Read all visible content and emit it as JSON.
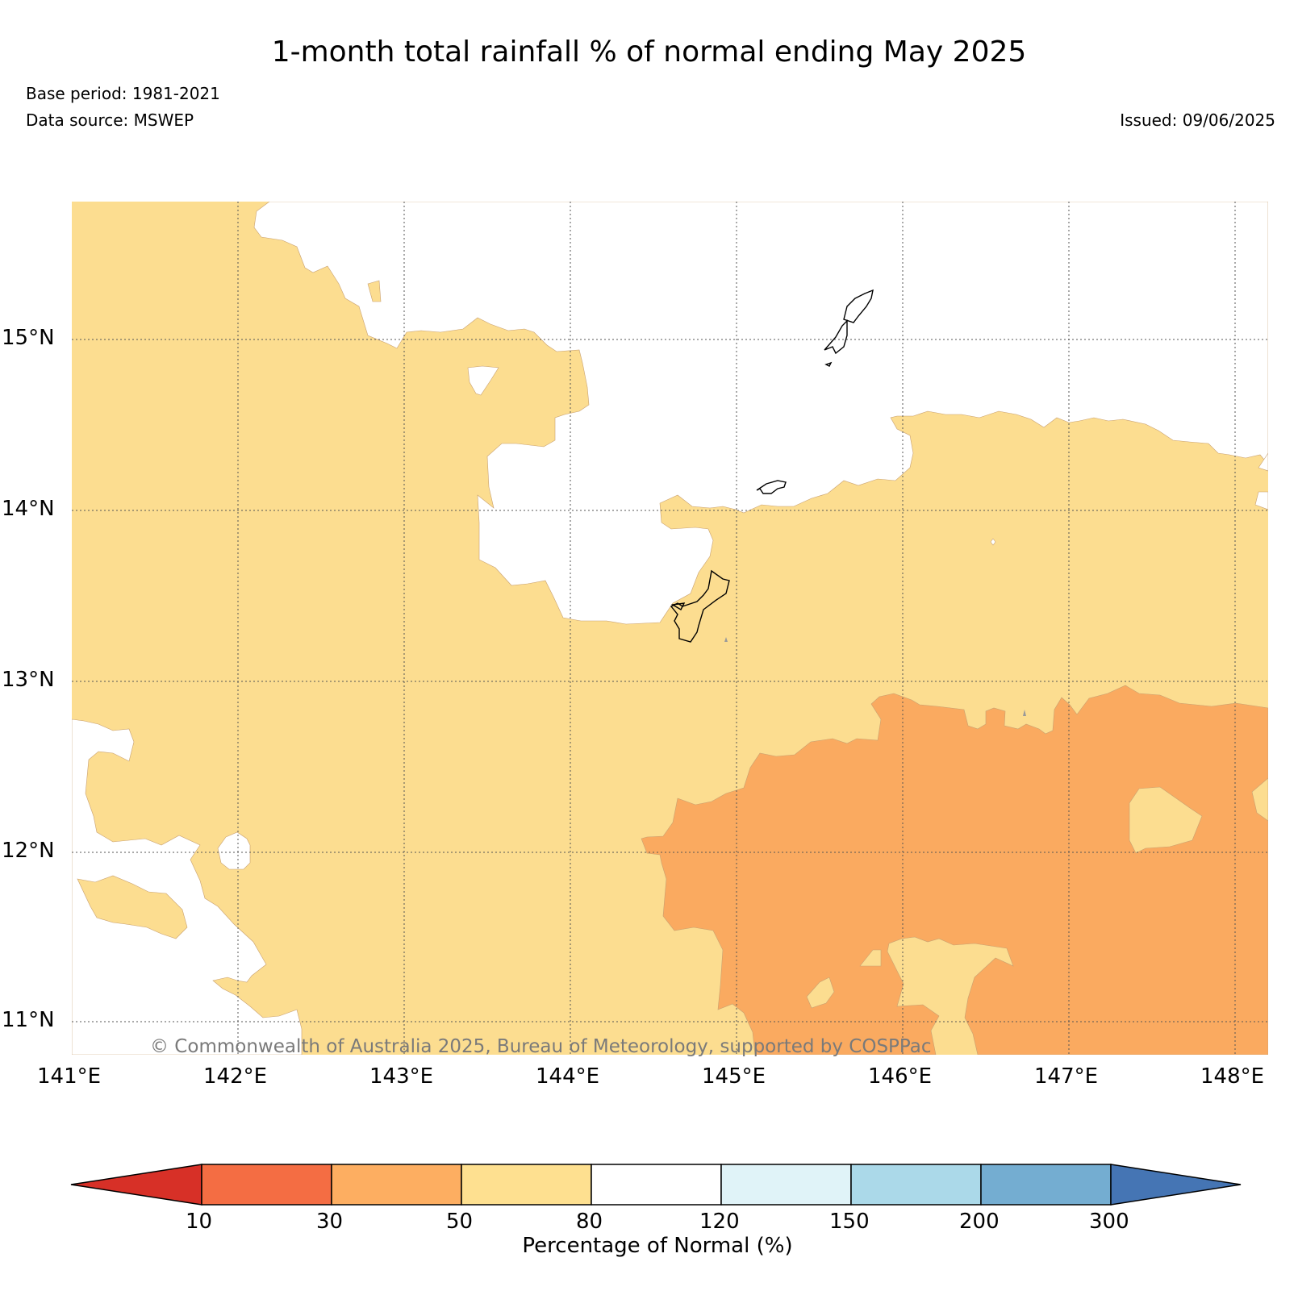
{
  "header": {
    "title": "1-month total rainfall % of normal ending May 2025",
    "base_period": "Base period: 1981-2021",
    "data_source": "Data source: MSWEP",
    "issued": "Issued: 09/06/2025"
  },
  "map": {
    "latitude_labels": [
      "15°N",
      "14°N",
      "13°N",
      "12°N",
      "11°N"
    ],
    "longitude_labels": [
      "141°E",
      "142°E",
      "143°E",
      "144°E",
      "145°E",
      "146°E",
      "147°E",
      "148°E"
    ],
    "copyright": "© Commonwealth of Australia 2025, Bureau of Meteorology, supported by COSPPac",
    "category_colors": {
      "50-80": "#fcdd90",
      "30-50": "#faaa60",
      "80-120": "#ffffff"
    }
  },
  "legend": {
    "ticks": [
      "10",
      "30",
      "50",
      "80",
      "120",
      "150",
      "200",
      "300"
    ],
    "colors": [
      "#d73027",
      "#f46d43",
      "#fdae61",
      "#fee090",
      "#ffffff",
      "#e0f3f8",
      "#abd9e9",
      "#74add1",
      "#4575b4"
    ],
    "label": "Percentage of Normal (%)"
  }
}
